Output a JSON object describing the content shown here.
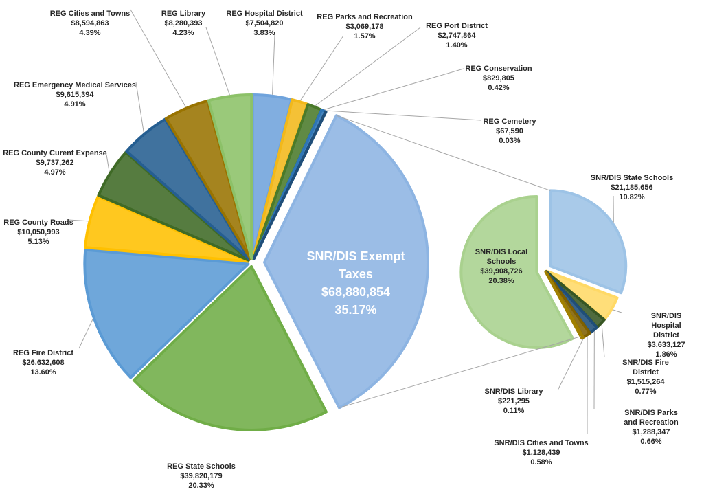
{
  "chart_data": {
    "type": "pie-of-pie",
    "pies": [
      {
        "categories": [
          "REG Hospital District",
          "REG Parks and Recreation",
          "REG Port District",
          "REG Conservation",
          "REG Cemetery",
          "SNR/DIS Exempt Taxes",
          "REG State Schools",
          "REG Fire District",
          "REG County Roads",
          "REG County Curent Expense",
          "REG Emergency Medical Services",
          "REG Cities and Towns",
          "REG Library"
        ],
        "values": [
          7504820,
          3069178,
          2747864,
          829805,
          67590,
          68880854,
          39820179,
          26632608,
          10050993,
          9737262,
          9615394,
          8594863,
          8280393
        ],
        "value_labels": [
          "$7,504,820",
          "$3,069,178",
          "$2,747,864",
          "$829,805",
          "$67,590",
          "$68,880,854",
          "$39,820,179",
          "$26,632,608",
          "$10,050,993",
          "$9,737,262",
          "$9,615,394",
          "$8,594,863",
          "$8,280,393"
        ],
        "percents": [
          3.83,
          1.57,
          1.4,
          0.42,
          0.03,
          35.17,
          20.33,
          13.6,
          5.13,
          4.97,
          4.91,
          4.39,
          4.23
        ],
        "percent_labels": [
          "3.83%",
          "1.57%",
          "1.40%",
          "0.42%",
          "0.03%",
          "35.17%",
          "20.33%",
          "13.60%",
          "5.13%",
          "4.97%",
          "4.91%",
          "4.39%",
          "4.23%"
        ],
        "colors": [
          "#6fa3dc",
          "#f2b81a",
          "#4a7a2a",
          "#2e75b6",
          "#1f4e79",
          "#8db4e2",
          "#70ad47",
          "#5b9bd5",
          "#ffc000",
          "#3f6a26",
          "#255e91",
          "#997300",
          "#8cc168"
        ]
      },
      {
        "categories": [
          "SNR/DIS State Schools",
          "SNR/DIS Hospital District",
          "SNR/DIS Fire District",
          "SNR/DIS Parks and Recreation",
          "SNR/DIS Cities and Towns",
          "SNR/DIS Library",
          "SNR/DIS Local Schools"
        ],
        "values": [
          21185656,
          3633127,
          1515264,
          1288347,
          1128439,
          221295,
          39908726
        ],
        "value_labels": [
          "$21,185,656",
          "$3,633,127",
          "$1,515,264",
          "$1,288,347",
          "$1,128,439",
          "$221,295",
          "$39,908,726"
        ],
        "percents": [
          10.82,
          1.86,
          0.77,
          0.66,
          0.58,
          0.11,
          20.38
        ],
        "percent_labels": [
          "10.82%",
          "1.86%",
          "0.77%",
          "0.66%",
          "0.58%",
          "0.11%",
          "20.38%"
        ],
        "colors": [
          "#9dc3e6",
          "#ffd966",
          "#375623",
          "#1f4e79",
          "#7f6000",
          "#a07f00",
          "#a9d18e"
        ]
      }
    ]
  }
}
